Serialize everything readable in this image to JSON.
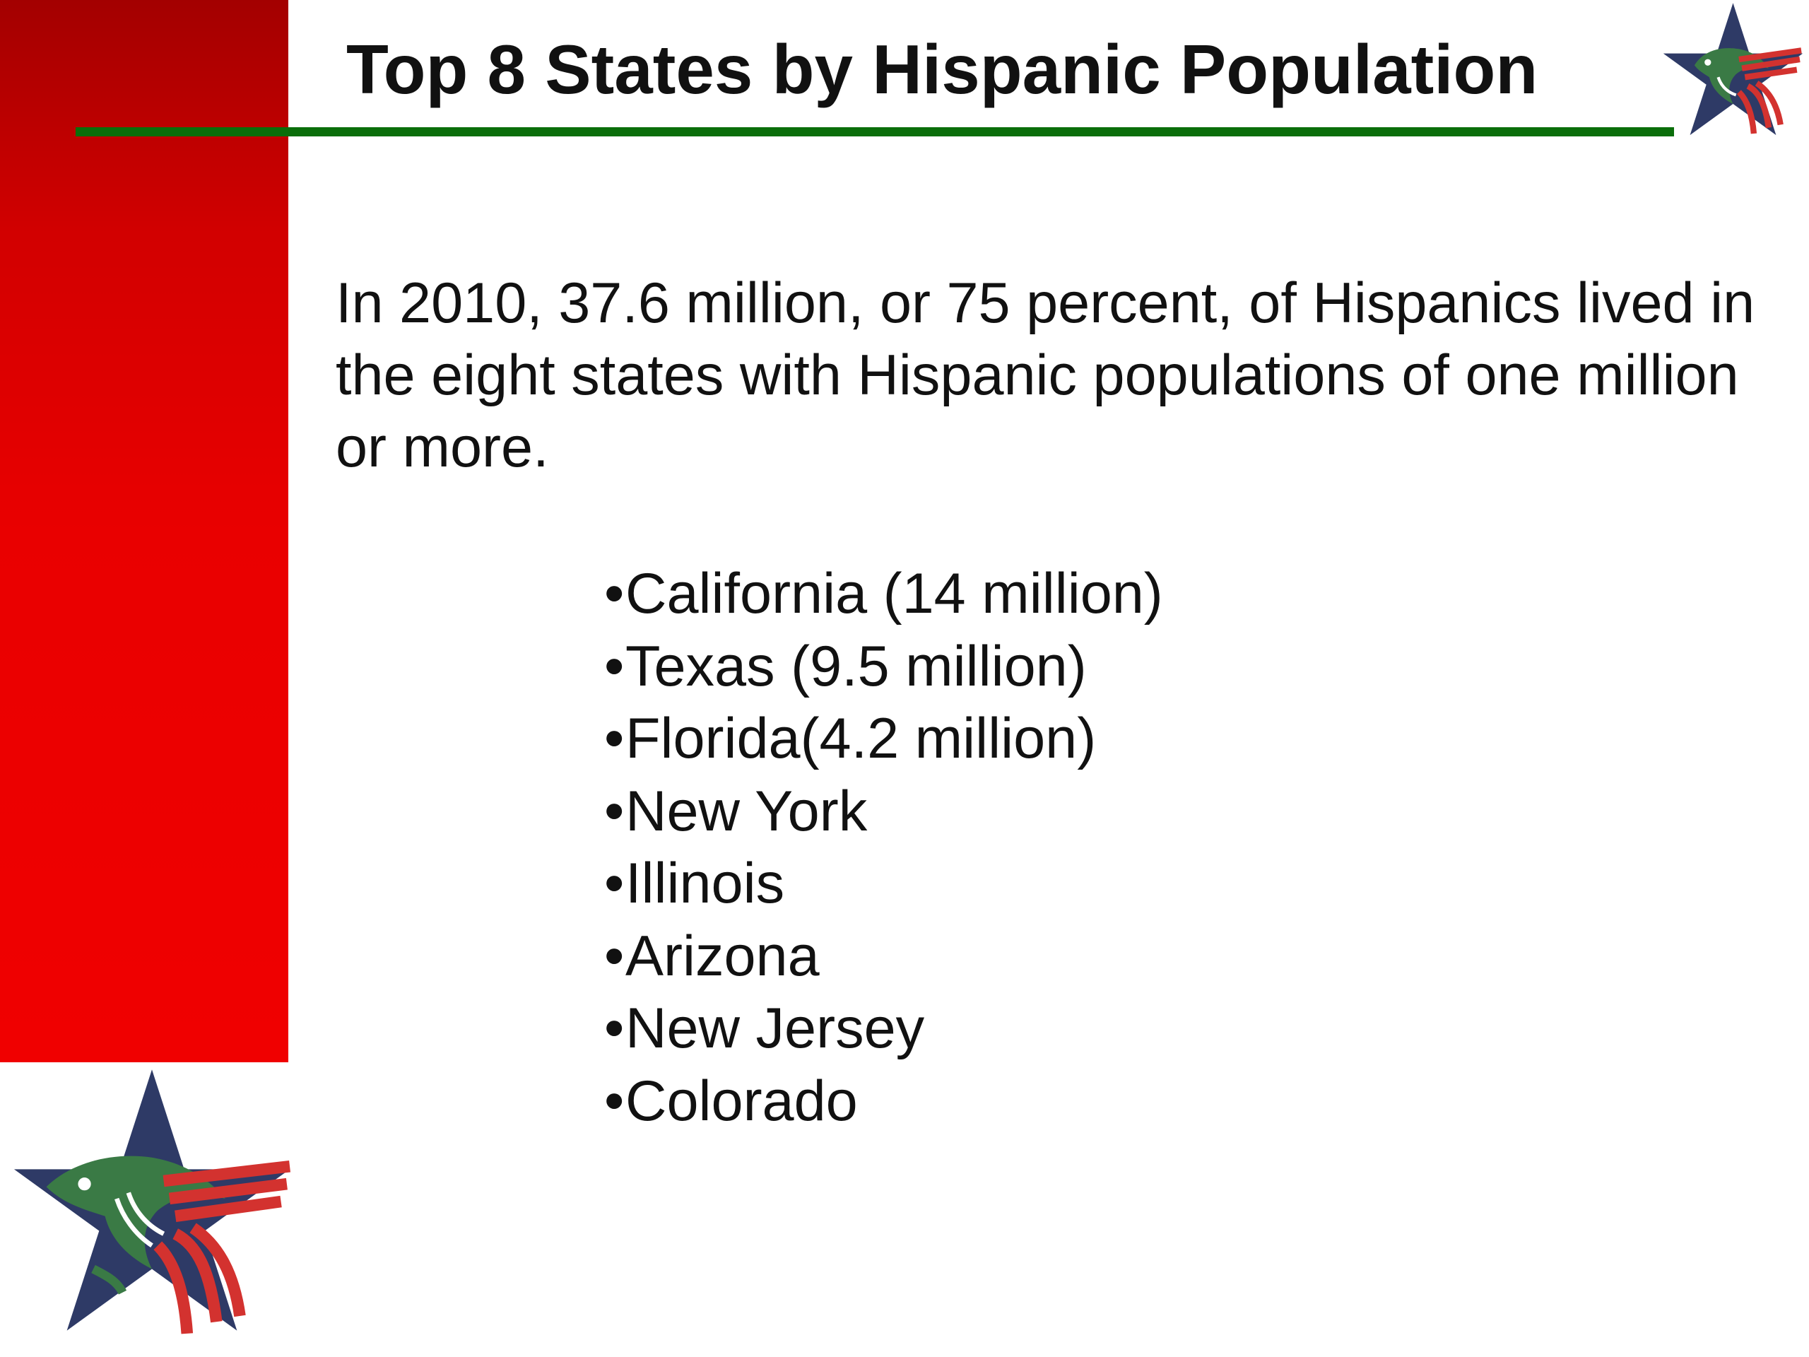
{
  "slide": {
    "title": "Top 8 States by Hispanic Population",
    "intro_text": "In 2010, 37.6 million, or 75 percent, of Hispanics lived in the eight states with Hispanic populations of one million or more.",
    "bullet_char": "•",
    "states": [
      "California (14 million)",
      "Texas (9.5 million)",
      "Florida(4.2 million)",
      "New York",
      "Illinois",
      "Arizona",
      "New Jersey",
      "Colorado"
    ]
  },
  "colors": {
    "accent_red": "#e00000",
    "rule_green": "#0a6e0a",
    "star_navy": "#2e3a66",
    "eagle_green": "#3a7a45",
    "stripe_red": "#d3322f"
  },
  "icons": {
    "top_logo": "star-eagle-logo-icon",
    "bottom_logo": "star-eagle-logo-icon"
  }
}
